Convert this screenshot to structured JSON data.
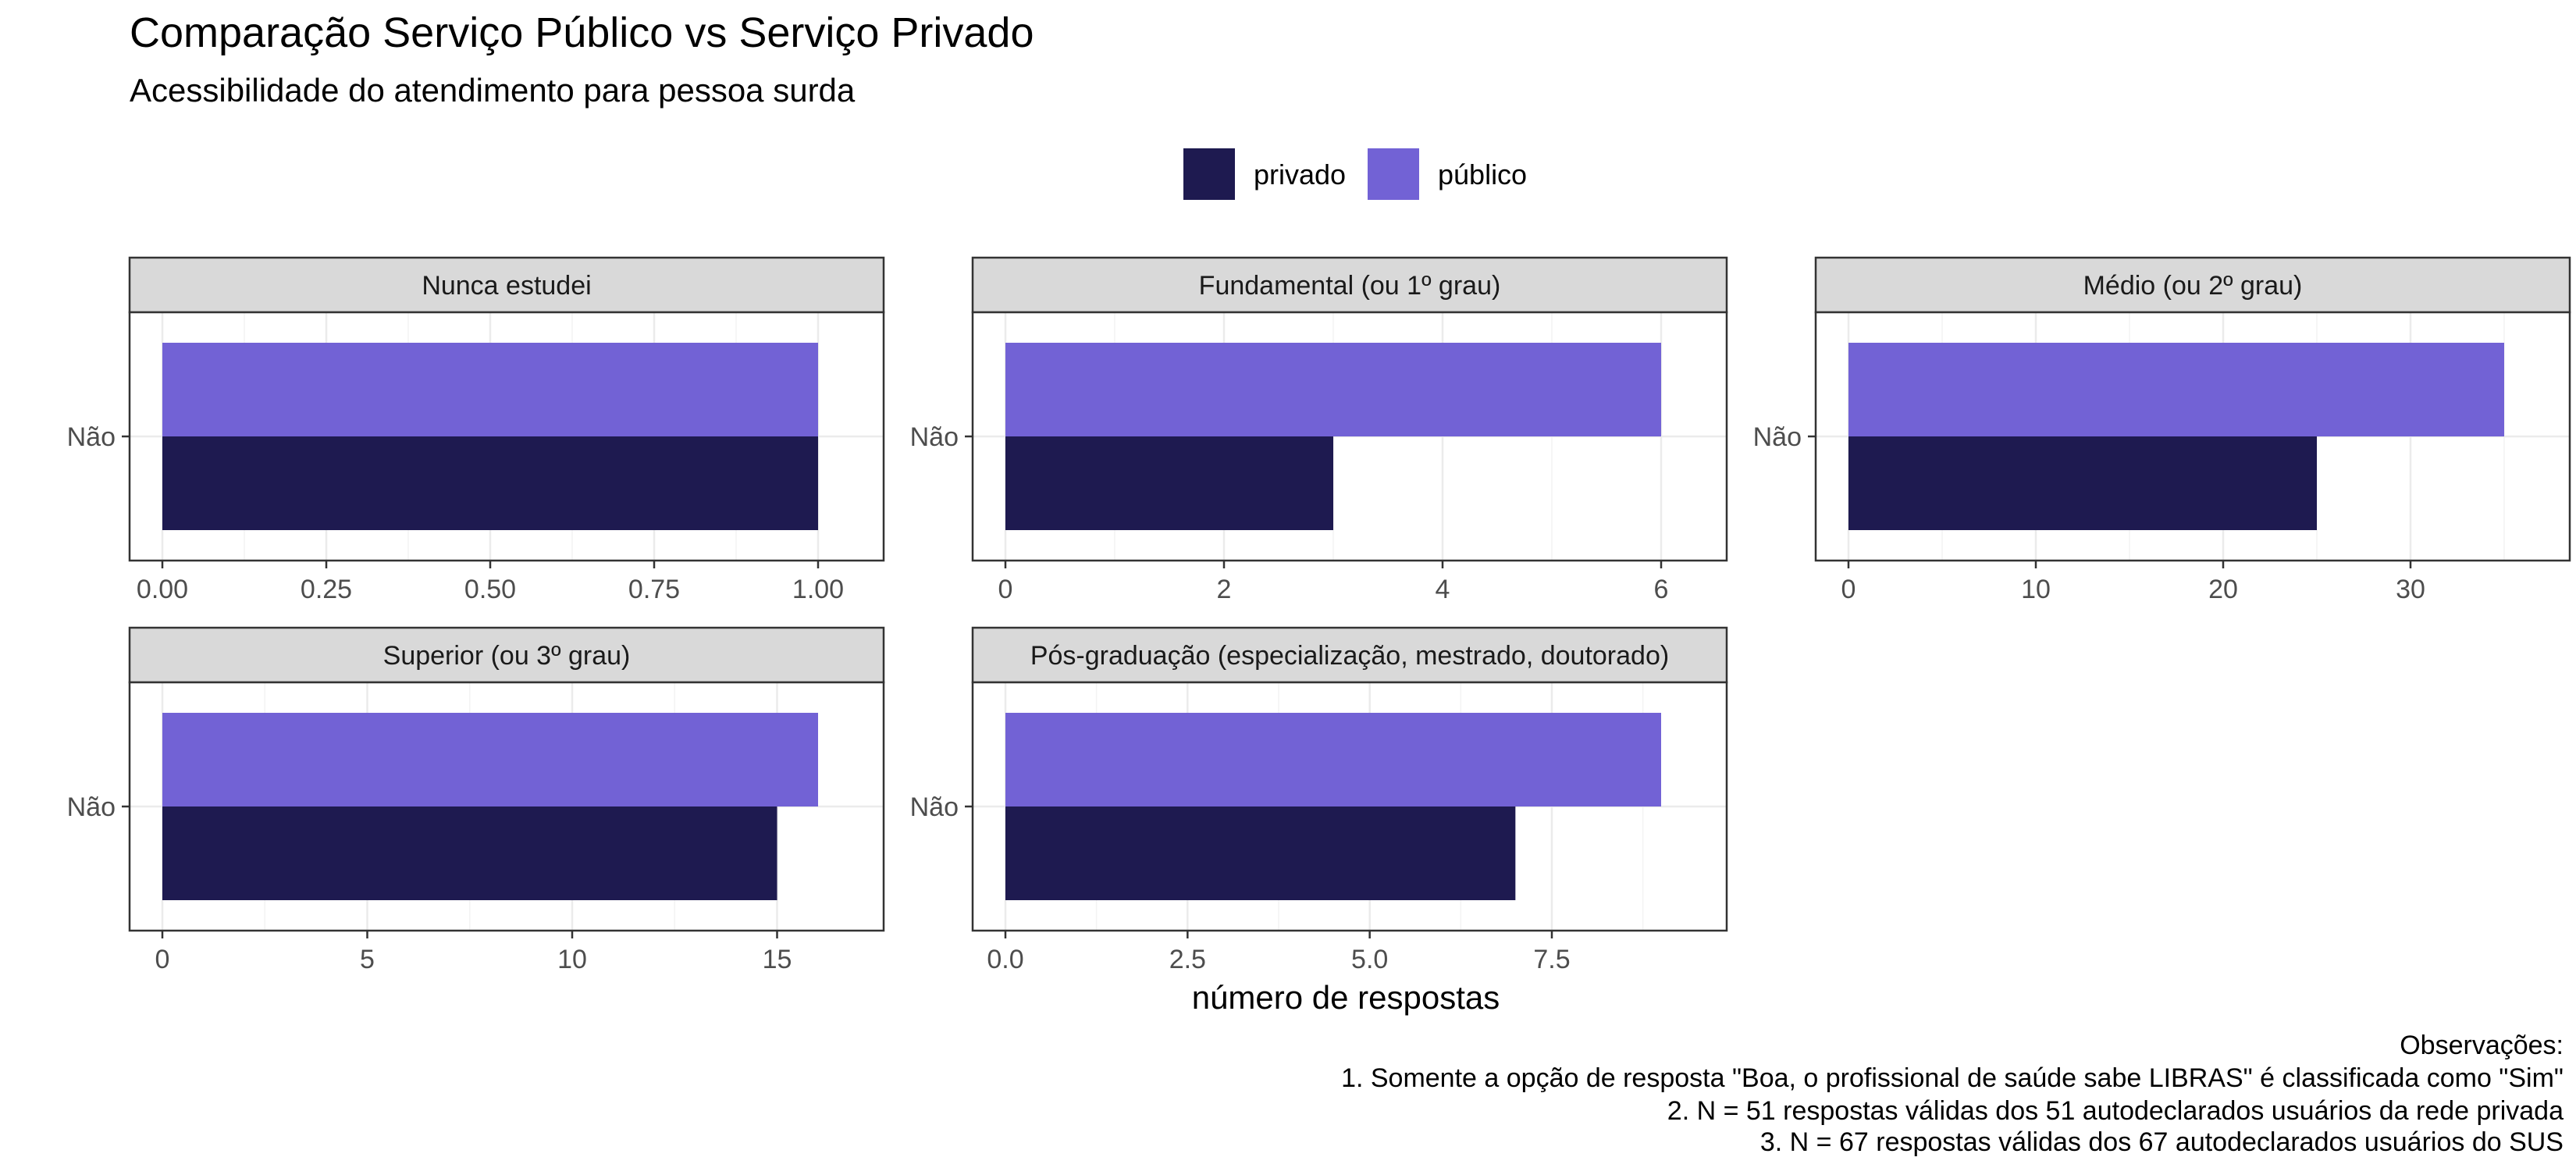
{
  "title": "Comparação Serviço Público vs Serviço Privado",
  "subtitle": "Acessibilidade do atendimento para pessoa surda",
  "xlabel": "número de respostas",
  "caption": [
    "Observações:",
    "1. Somente a opção de resposta \"Boa, o profissional de saúde sabe LIBRAS\" é classificada como \"Sim\"",
    "2. N = 51 respostas válidas dos 51 autodeclarados usuários da rede privada",
    "3. N = 67 respostas válidas dos 67 autodeclarados usuários do SUS"
  ],
  "legend": {
    "position": "top",
    "items": [
      {
        "label": "privado",
        "color": "#1E1A50"
      },
      {
        "label": "público",
        "color": "#7262D5"
      }
    ]
  },
  "chart_data": {
    "type": "bar",
    "orientation": "horizontal",
    "grid": true,
    "categories": [
      "Não"
    ],
    "panels": [
      {
        "title": "Nunca estudei",
        "xlim": [
          0,
          1.05
        ],
        "ticks": [
          "0.00",
          "0.25",
          "0.50",
          "0.75",
          "1.00"
        ],
        "tick_values": [
          0,
          0.25,
          0.5,
          0.75,
          1
        ],
        "series": [
          {
            "name": "privado",
            "values": [
              1
            ]
          },
          {
            "name": "público",
            "values": [
              1
            ]
          }
        ]
      },
      {
        "title": "Fundamental (ou 1º grau)",
        "xlim": [
          0,
          6.3
        ],
        "ticks": [
          "0",
          "2",
          "4",
          "6"
        ],
        "tick_values": [
          0,
          2,
          4,
          6
        ],
        "series": [
          {
            "name": "privado",
            "values": [
              3
            ]
          },
          {
            "name": "público",
            "values": [
              6
            ]
          }
        ]
      },
      {
        "title": "Médio (ou 2º grau)",
        "xlim": [
          0,
          36.75
        ],
        "ticks": [
          "0",
          "10",
          "20",
          "30"
        ],
        "tick_values": [
          0,
          10,
          20,
          30
        ],
        "series": [
          {
            "name": "privado",
            "values": [
              25
            ]
          },
          {
            "name": "público",
            "values": [
              35
            ]
          }
        ]
      },
      {
        "title": "Superior (ou 3º grau)",
        "xlim": [
          0,
          16.8
        ],
        "ticks": [
          "0",
          "5",
          "10",
          "15"
        ],
        "tick_values": [
          0,
          5,
          10,
          15
        ],
        "series": [
          {
            "name": "privado",
            "values": [
              15
            ]
          },
          {
            "name": "público",
            "values": [
              16
            ]
          }
        ]
      },
      {
        "title": "Pós-graduação (especialização, mestrado, doutorado)",
        "xlim": [
          0,
          9.45
        ],
        "ticks": [
          "0.0",
          "2.5",
          "5.0",
          "7.5"
        ],
        "tick_values": [
          0,
          2.5,
          5,
          7.5
        ],
        "series": [
          {
            "name": "privado",
            "values": [
              7
            ]
          },
          {
            "name": "público",
            "values": [
              9
            ]
          }
        ]
      }
    ]
  }
}
